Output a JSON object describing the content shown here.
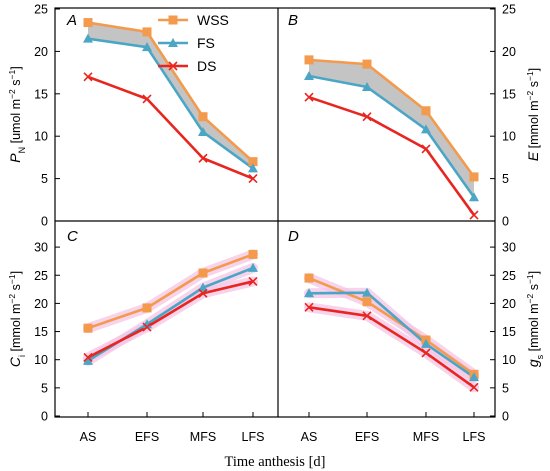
{
  "colors": {
    "WSS": "#F39A4C",
    "FS": "#4BA6C6",
    "DS": "#E8251F",
    "shade": "#C4C4C4",
    "glow": "#F4C6E6"
  },
  "legend": [
    {
      "name": "WSS",
      "marker": "square"
    },
    {
      "name": "FS",
      "marker": "triangle"
    },
    {
      "name": "DS",
      "marker": "cross"
    }
  ],
  "categories": [
    "AS",
    "EFS",
    "MFS",
    "LFS"
  ],
  "xlabel": "Time anthesis [d]",
  "chart_data": [
    {
      "type": "line",
      "panel": "A",
      "ylabel": {
        "base": "P",
        "sub": "N",
        "unit": " [umol m",
        "exp1": "−2",
        "mid": " s",
        "exp2": "−1",
        "end": "]"
      },
      "ylim": [
        0,
        25
      ],
      "yticks": [
        "0",
        "5",
        "10",
        "15",
        "20",
        "25"
      ],
      "series": [
        {
          "name": "WSS",
          "values": [
            23.4,
            22.3,
            12.3,
            7.0
          ]
        },
        {
          "name": "FS",
          "values": [
            21.5,
            20.5,
            10.5,
            6.2
          ]
        },
        {
          "name": "DS",
          "values": [
            17.0,
            14.4,
            7.4,
            5.0
          ]
        }
      ]
    },
    {
      "type": "line",
      "panel": "B",
      "ylabel": {
        "base": "E",
        "sub": "",
        "unit": " [mmol m",
        "exp1": "−2",
        "mid": " s",
        "exp2": "−1",
        "end": "]"
      },
      "ylim": [
        0,
        25
      ],
      "yticks": [
        "0",
        "5",
        "10",
        "15",
        "20",
        "25"
      ],
      "series": [
        {
          "name": "WSS",
          "values": [
            19.0,
            18.5,
            13.0,
            5.2
          ]
        },
        {
          "name": "FS",
          "values": [
            17.1,
            15.8,
            10.8,
            2.8
          ]
        },
        {
          "name": "DS",
          "values": [
            14.6,
            12.3,
            8.5,
            0.7
          ]
        }
      ]
    },
    {
      "type": "line",
      "panel": "C",
      "ylabel": {
        "base": "C",
        "sub": "i",
        "unit": " [mmol m",
        "exp1": "−2",
        "mid": " s",
        "exp2": "−1",
        "end": "]"
      },
      "ylim": [
        0,
        35
      ],
      "yticks": [
        "0",
        "5",
        "10",
        "15",
        "20",
        "25",
        "30"
      ],
      "series": [
        {
          "name": "WSS",
          "values": [
            15.6,
            19.2,
            25.4,
            28.7
          ]
        },
        {
          "name": "FS",
          "values": [
            9.8,
            16.3,
            22.8,
            26.3
          ]
        },
        {
          "name": "DS",
          "values": [
            10.4,
            15.8,
            21.8,
            23.9
          ]
        }
      ]
    },
    {
      "type": "line",
      "panel": "D",
      "ylabel": {
        "base": "g",
        "sub": "s",
        "unit": " [mmol m",
        "exp1": "−2",
        "mid": " s",
        "exp2": "−1",
        "end": "]"
      },
      "ylim": [
        0,
        35
      ],
      "yticks": [
        "0",
        "5",
        "10",
        "15",
        "20",
        "25",
        "30"
      ],
      "series": [
        {
          "name": "WSS",
          "values": [
            24.5,
            20.3,
            13.5,
            7.4
          ]
        },
        {
          "name": "FS",
          "values": [
            21.8,
            21.9,
            12.8,
            6.9
          ]
        },
        {
          "name": "DS",
          "values": [
            19.3,
            17.8,
            11.2,
            5.1
          ]
        }
      ]
    }
  ]
}
